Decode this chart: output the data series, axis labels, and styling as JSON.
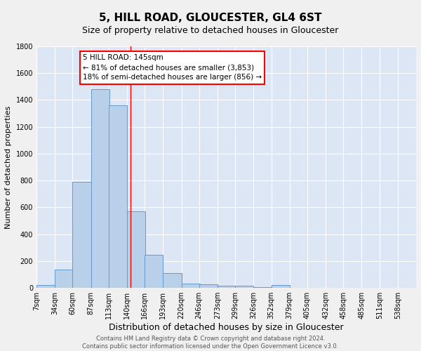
{
  "title": "5, HILL ROAD, GLOUCESTER, GL4 6ST",
  "subtitle": "Size of property relative to detached houses in Gloucester",
  "xlabel": "Distribution of detached houses by size in Gloucester",
  "ylabel": "Number of detached properties",
  "bar_color": "#b8d0ea",
  "bar_edge_color": "#6699cc",
  "background_color": "#dce6f5",
  "fig_color": "#f0f0f0",
  "annotation_text": "5 HILL ROAD: 145sqm\n← 81% of detached houses are smaller (3,853)\n18% of semi-detached houses are larger (856) →",
  "vline_x": 145,
  "vline_color": "red",
  "categories": [
    "7sqm",
    "34sqm",
    "60sqm",
    "87sqm",
    "113sqm",
    "140sqm",
    "166sqm",
    "193sqm",
    "220sqm",
    "246sqm",
    "273sqm",
    "299sqm",
    "326sqm",
    "352sqm",
    "379sqm",
    "405sqm",
    "432sqm",
    "458sqm",
    "485sqm",
    "511sqm",
    "538sqm"
  ],
  "bin_edges": [
    7,
    34,
    60,
    87,
    113,
    140,
    166,
    193,
    220,
    246,
    273,
    299,
    326,
    352,
    379,
    405,
    432,
    458,
    485,
    511,
    538
  ],
  "bin_width": 27,
  "values": [
    20,
    135,
    790,
    1480,
    1360,
    570,
    248,
    113,
    35,
    25,
    15,
    15,
    5,
    20,
    0,
    0,
    0,
    0,
    0,
    0
  ],
  "ylim": [
    0,
    1800
  ],
  "yticks": [
    0,
    200,
    400,
    600,
    800,
    1000,
    1200,
    1400,
    1600,
    1800
  ],
  "footer_text": "Contains HM Land Registry data © Crown copyright and database right 2024.\nContains public sector information licensed under the Open Government Licence v3.0.",
  "grid_color": "#ffffff",
  "title_fontsize": 11,
  "subtitle_fontsize": 9,
  "ylabel_fontsize": 8,
  "xlabel_fontsize": 9,
  "tick_fontsize": 7,
  "footer_fontsize": 6,
  "ann_fontsize": 7.5
}
